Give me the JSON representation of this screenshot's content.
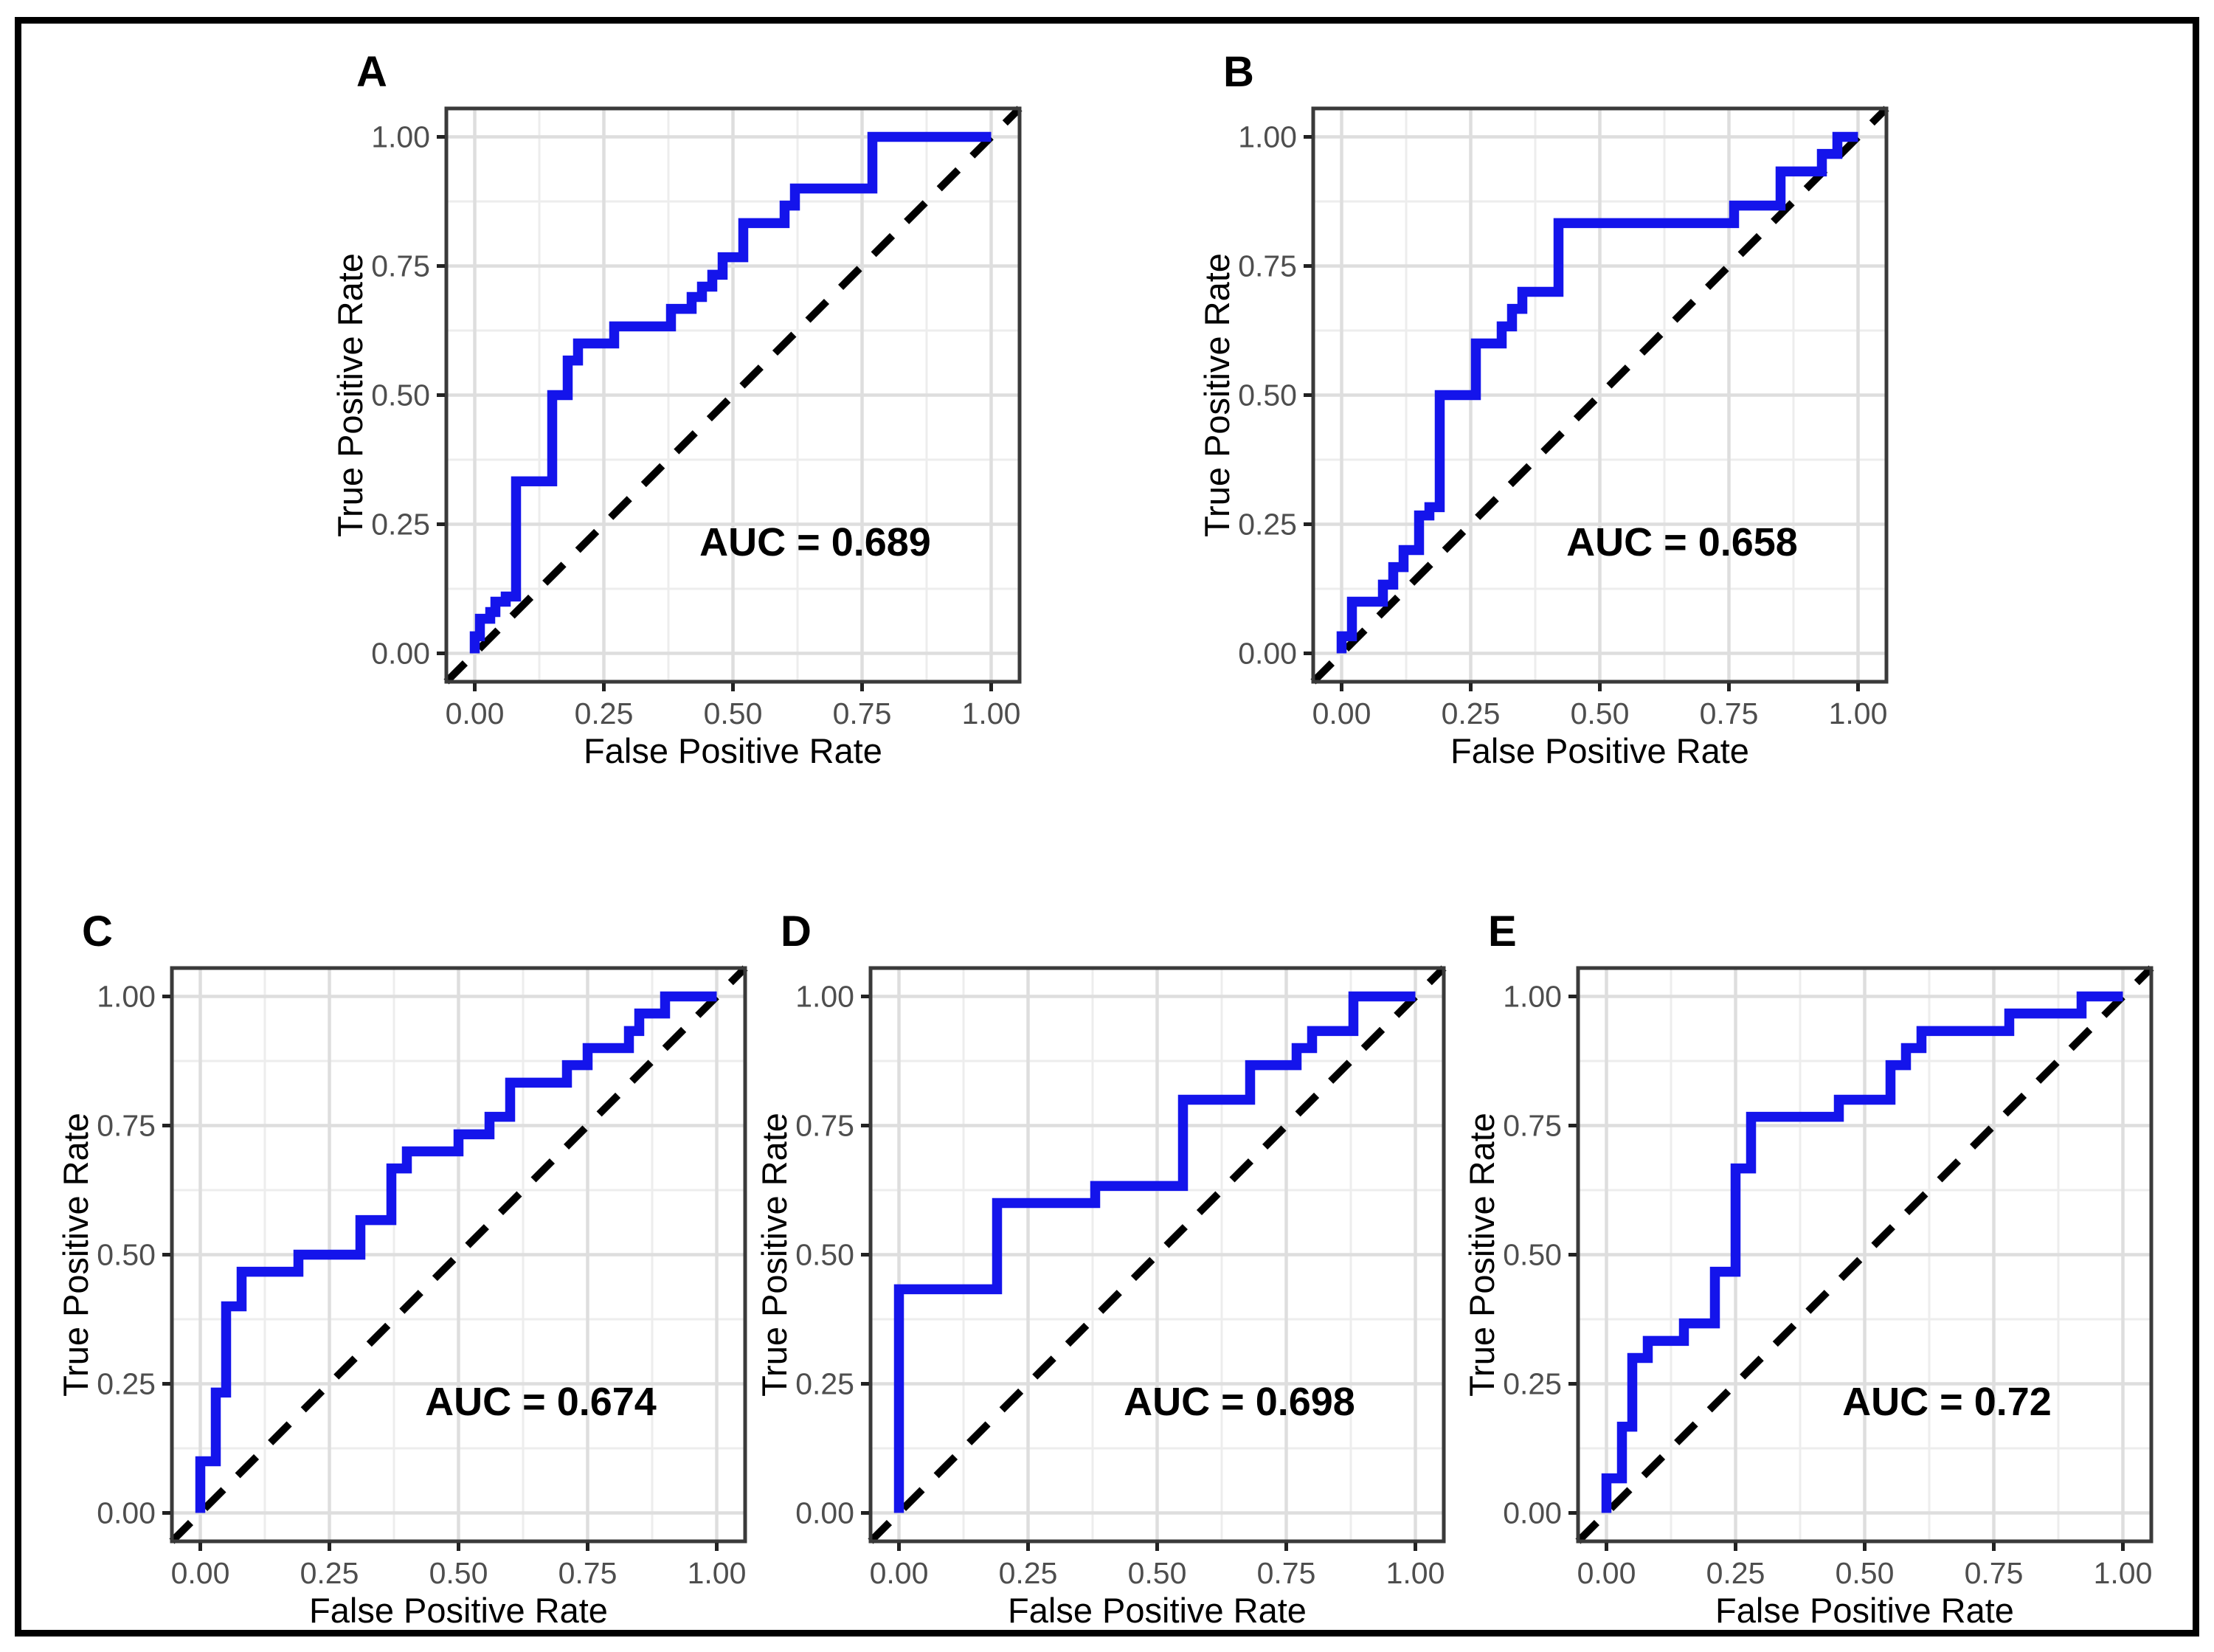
{
  "figure": {
    "description": "Five-panel ROC curve figure",
    "background": "#ffffff",
    "outer_border_color": "#000000"
  },
  "style": {
    "roc_color": "#1414EB",
    "diagonal_color": "#000000",
    "grid_major_color": "#dedede",
    "grid_minor_color": "#ededed",
    "panel_border_color": "#3a3a3a",
    "tick_mark_color": "#222222",
    "tick_label_color": "#4e4e4e",
    "axis_title_color": "#000000",
    "annotation_color": "#000000",
    "panel_letter_color": "#000000"
  },
  "shared_axes": {
    "xlabel": "False Positive Rate",
    "ylabel": "True Positive Rate",
    "tick_values": [
      0,
      0.25,
      0.5,
      0.75,
      1
    ],
    "tick_labels": [
      "0.00",
      "0.25",
      "0.50",
      "0.75",
      "1.00"
    ],
    "minor_grid_values": [
      0.125,
      0.375,
      0.625,
      0.875
    ],
    "xlim": [
      0,
      1
    ],
    "ylim": [
      0,
      1
    ],
    "range_expansion": 0.055,
    "grid": true,
    "legend": false
  },
  "chart_data": [
    {
      "id": "A",
      "type": "line",
      "panel_label": "A",
      "annotation": "AUC = 0.689",
      "auc": 0.689,
      "xlabel": "False Positive Rate",
      "ylabel": "True Positive Rate",
      "xlim": [
        0,
        1
      ],
      "ylim": [
        0,
        1
      ],
      "series": [
        {
          "name": "ROC curve",
          "points": [
            [
              0,
              0
            ],
            [
              0,
              0.033
            ],
            [
              0.01,
              0.033
            ],
            [
              0.01,
              0.067
            ],
            [
              0.03,
              0.067
            ],
            [
              0.03,
              0.08
            ],
            [
              0.04,
              0.08
            ],
            [
              0.04,
              0.1
            ],
            [
              0.06,
              0.1
            ],
            [
              0.06,
              0.11
            ],
            [
              0.08,
              0.11
            ],
            [
              0.08,
              0.333
            ],
            [
              0.15,
              0.333
            ],
            [
              0.15,
              0.5
            ],
            [
              0.18,
              0.5
            ],
            [
              0.18,
              0.567
            ],
            [
              0.2,
              0.567
            ],
            [
              0.2,
              0.6
            ],
            [
              0.27,
              0.6
            ],
            [
              0.27,
              0.633
            ],
            [
              0.38,
              0.633
            ],
            [
              0.38,
              0.667
            ],
            [
              0.42,
              0.667
            ],
            [
              0.42,
              0.69
            ],
            [
              0.44,
              0.69
            ],
            [
              0.44,
              0.71
            ],
            [
              0.46,
              0.71
            ],
            [
              0.46,
              0.733
            ],
            [
              0.48,
              0.733
            ],
            [
              0.48,
              0.767
            ],
            [
              0.52,
              0.767
            ],
            [
              0.52,
              0.833
            ],
            [
              0.6,
              0.833
            ],
            [
              0.6,
              0.867
            ],
            [
              0.62,
              0.867
            ],
            [
              0.62,
              0.9
            ],
            [
              0.77,
              0.9
            ],
            [
              0.77,
              1
            ],
            [
              1,
              1
            ]
          ]
        },
        {
          "name": "chance diagonal",
          "style": "dashed",
          "points": [
            [
              0,
              0
            ],
            [
              1,
              1
            ]
          ]
        }
      ]
    },
    {
      "id": "B",
      "type": "line",
      "panel_label": "B",
      "annotation": "AUC = 0.658",
      "auc": 0.658,
      "xlabel": "False Positive Rate",
      "ylabel": "True Positive Rate",
      "xlim": [
        0,
        1
      ],
      "ylim": [
        0,
        1
      ],
      "series": [
        {
          "name": "ROC curve",
          "points": [
            [
              0,
              0
            ],
            [
              0,
              0.033
            ],
            [
              0.02,
              0.033
            ],
            [
              0.02,
              0.1
            ],
            [
              0.08,
              0.1
            ],
            [
              0.08,
              0.133
            ],
            [
              0.1,
              0.133
            ],
            [
              0.1,
              0.167
            ],
            [
              0.12,
              0.167
            ],
            [
              0.12,
              0.2
            ],
            [
              0.15,
              0.2
            ],
            [
              0.15,
              0.267
            ],
            [
              0.17,
              0.267
            ],
            [
              0.17,
              0.283
            ],
            [
              0.19,
              0.283
            ],
            [
              0.19,
              0.5
            ],
            [
              0.26,
              0.5
            ],
            [
              0.26,
              0.6
            ],
            [
              0.31,
              0.6
            ],
            [
              0.31,
              0.633
            ],
            [
              0.33,
              0.633
            ],
            [
              0.33,
              0.667
            ],
            [
              0.35,
              0.667
            ],
            [
              0.35,
              0.7
            ],
            [
              0.42,
              0.7
            ],
            [
              0.42,
              0.833
            ],
            [
              0.76,
              0.833
            ],
            [
              0.76,
              0.867
            ],
            [
              0.85,
              0.867
            ],
            [
              0.85,
              0.933
            ],
            [
              0.93,
              0.933
            ],
            [
              0.93,
              0.967
            ],
            [
              0.96,
              0.967
            ],
            [
              0.96,
              1
            ],
            [
              1,
              1
            ]
          ]
        },
        {
          "name": "chance diagonal",
          "style": "dashed",
          "points": [
            [
              0,
              0
            ],
            [
              1,
              1
            ]
          ]
        }
      ]
    },
    {
      "id": "C",
      "type": "line",
      "panel_label": "C",
      "annotation": "AUC = 0.674",
      "auc": 0.674,
      "xlabel": "False Positive Rate",
      "ylabel": "True Positive Rate",
      "xlim": [
        0,
        1
      ],
      "ylim": [
        0,
        1
      ],
      "series": [
        {
          "name": "ROC curve",
          "points": [
            [
              0,
              0
            ],
            [
              0,
              0.1
            ],
            [
              0.03,
              0.1
            ],
            [
              0.03,
              0.233
            ],
            [
              0.05,
              0.233
            ],
            [
              0.05,
              0.4
            ],
            [
              0.08,
              0.4
            ],
            [
              0.08,
              0.467
            ],
            [
              0.19,
              0.467
            ],
            [
              0.19,
              0.5
            ],
            [
              0.31,
              0.5
            ],
            [
              0.31,
              0.567
            ],
            [
              0.37,
              0.567
            ],
            [
              0.37,
              0.667
            ],
            [
              0.4,
              0.667
            ],
            [
              0.4,
              0.7
            ],
            [
              0.5,
              0.7
            ],
            [
              0.5,
              0.733
            ],
            [
              0.56,
              0.733
            ],
            [
              0.56,
              0.767
            ],
            [
              0.6,
              0.767
            ],
            [
              0.6,
              0.833
            ],
            [
              0.71,
              0.833
            ],
            [
              0.71,
              0.867
            ],
            [
              0.75,
              0.867
            ],
            [
              0.75,
              0.9
            ],
            [
              0.83,
              0.9
            ],
            [
              0.83,
              0.933
            ],
            [
              0.85,
              0.933
            ],
            [
              0.85,
              0.967
            ],
            [
              0.9,
              0.967
            ],
            [
              0.9,
              1
            ],
            [
              1,
              1
            ]
          ]
        },
        {
          "name": "chance diagonal",
          "style": "dashed",
          "points": [
            [
              0,
              0
            ],
            [
              1,
              1
            ]
          ]
        }
      ]
    },
    {
      "id": "D",
      "type": "line",
      "panel_label": "D",
      "annotation": "AUC = 0.698",
      "auc": 0.698,
      "xlabel": "False Positive Rate",
      "ylabel": "True Positive Rate",
      "xlim": [
        0,
        1
      ],
      "ylim": [
        0,
        1
      ],
      "series": [
        {
          "name": "ROC curve",
          "points": [
            [
              0,
              0
            ],
            [
              0,
              0.433
            ],
            [
              0.19,
              0.433
            ],
            [
              0.19,
              0.6
            ],
            [
              0.38,
              0.6
            ],
            [
              0.38,
              0.633
            ],
            [
              0.55,
              0.633
            ],
            [
              0.55,
              0.8
            ],
            [
              0.68,
              0.8
            ],
            [
              0.68,
              0.867
            ],
            [
              0.77,
              0.867
            ],
            [
              0.77,
              0.9
            ],
            [
              0.8,
              0.9
            ],
            [
              0.8,
              0.933
            ],
            [
              0.88,
              0.933
            ],
            [
              0.88,
              1
            ],
            [
              1,
              1
            ]
          ]
        },
        {
          "name": "chance diagonal",
          "style": "dashed",
          "points": [
            [
              0,
              0
            ],
            [
              1,
              1
            ]
          ]
        }
      ]
    },
    {
      "id": "E",
      "type": "line",
      "panel_label": "E",
      "annotation": "AUC = 0.72",
      "auc": 0.72,
      "xlabel": "False Positive Rate",
      "ylabel": "True Positive Rate",
      "xlim": [
        0,
        1
      ],
      "ylim": [
        0,
        1
      ],
      "series": [
        {
          "name": "ROC curve",
          "points": [
            [
              0,
              0
            ],
            [
              0,
              0.067
            ],
            [
              0.03,
              0.067
            ],
            [
              0.03,
              0.167
            ],
            [
              0.05,
              0.167
            ],
            [
              0.05,
              0.3
            ],
            [
              0.08,
              0.3
            ],
            [
              0.08,
              0.333
            ],
            [
              0.15,
              0.333
            ],
            [
              0.15,
              0.367
            ],
            [
              0.21,
              0.367
            ],
            [
              0.21,
              0.467
            ],
            [
              0.25,
              0.467
            ],
            [
              0.25,
              0.667
            ],
            [
              0.28,
              0.667
            ],
            [
              0.28,
              0.767
            ],
            [
              0.45,
              0.767
            ],
            [
              0.45,
              0.8
            ],
            [
              0.55,
              0.8
            ],
            [
              0.55,
              0.867
            ],
            [
              0.58,
              0.867
            ],
            [
              0.58,
              0.9
            ],
            [
              0.61,
              0.9
            ],
            [
              0.61,
              0.933
            ],
            [
              0.78,
              0.933
            ],
            [
              0.78,
              0.967
            ],
            [
              0.92,
              0.967
            ],
            [
              0.92,
              1
            ],
            [
              1,
              1
            ]
          ]
        },
        {
          "name": "chance diagonal",
          "style": "dashed",
          "points": [
            [
              0,
              0
            ],
            [
              1,
              1
            ]
          ]
        }
      ]
    }
  ]
}
